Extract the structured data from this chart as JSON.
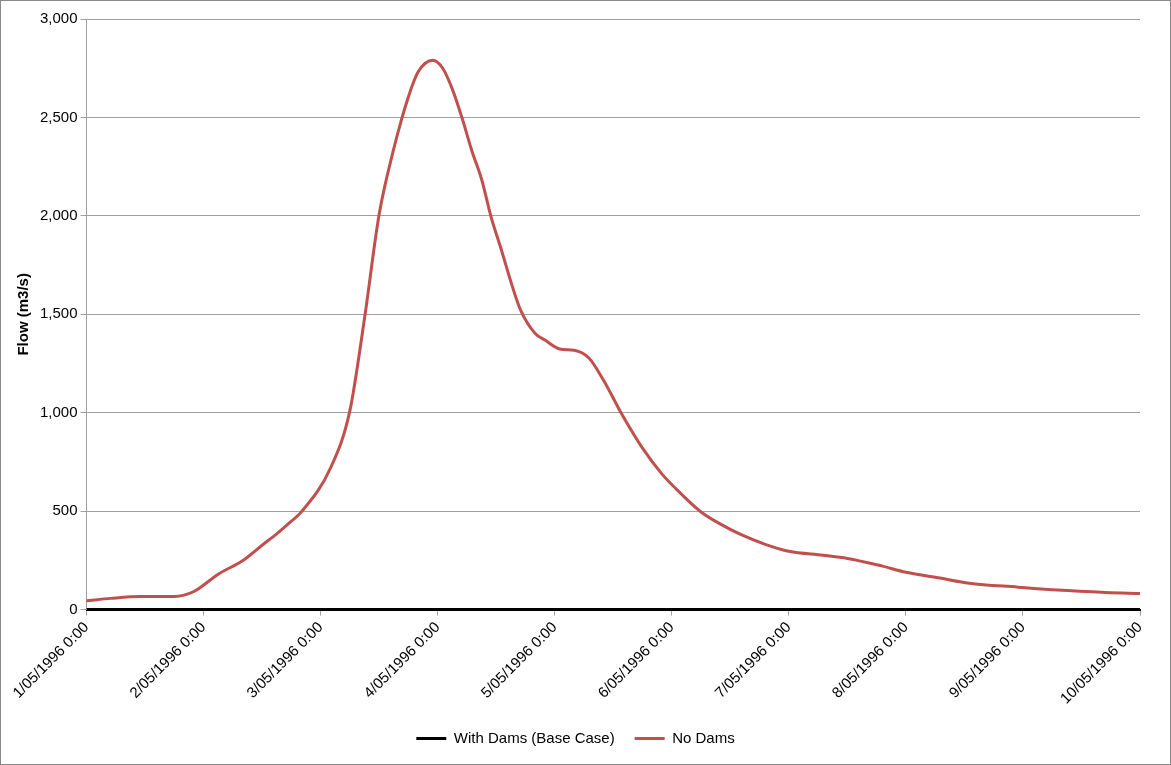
{
  "chart_data": {
    "type": "line",
    "ylabel": "Flow (m3/s)",
    "xlim": [
      "1996-05-01T00:00",
      "1996-05-10T00:00"
    ],
    "xticks": [
      {
        "value": "1996-05-01T00:00",
        "label": "1/05/1996 0:00"
      },
      {
        "value": "1996-05-02T00:00",
        "label": "2/05/1996 0:00"
      },
      {
        "value": "1996-05-03T00:00",
        "label": "3/05/1996 0:00"
      },
      {
        "value": "1996-05-04T00:00",
        "label": "4/05/1996 0:00"
      },
      {
        "value": "1996-05-05T00:00",
        "label": "5/05/1996 0:00"
      },
      {
        "value": "1996-05-06T00:00",
        "label": "6/05/1996 0:00"
      },
      {
        "value": "1996-05-07T00:00",
        "label": "7/05/1996 0:00"
      },
      {
        "value": "1996-05-08T00:00",
        "label": "8/05/1996 0:00"
      },
      {
        "value": "1996-05-09T00:00",
        "label": "9/05/1996 0:00"
      },
      {
        "value": "1996-05-10T00:00",
        "label": "10/05/1996 0:00"
      }
    ],
    "ylim": [
      0,
      3000
    ],
    "yticks": [
      {
        "value": 0,
        "label": "0"
      },
      {
        "value": 500,
        "label": "500"
      },
      {
        "value": 1000,
        "label": "1,000"
      },
      {
        "value": 1500,
        "label": "1,500"
      },
      {
        "value": 2000,
        "label": "2,000"
      },
      {
        "value": 2500,
        "label": "2,500"
      },
      {
        "value": 3000,
        "label": "3,000"
      }
    ],
    "grid": "y",
    "legend": "bottom",
    "marker": "none",
    "line_style": "solid",
    "series": [
      {
        "name": "With Dams (Base Case)",
        "color": "#000000",
        "x": [
          "1996-05-01T00:00",
          "1996-05-10T00:00"
        ],
        "values": [
          0,
          0
        ]
      },
      {
        "name": "No Dams",
        "color": "#c0504d",
        "x": [
          "1996-05-01T00:00",
          "1996-05-01T05:00",
          "1996-05-01T11:00",
          "1996-05-01T18:00",
          "1996-05-01T22:00",
          "1996-05-02T03:00",
          "1996-05-02T08:00",
          "1996-05-02T12:00",
          "1996-05-02T15:00",
          "1996-05-02T18:00",
          "1996-05-02T20:00",
          "1996-05-03T02:00",
          "1996-05-03T06:00",
          "1996-05-03T09:00",
          "1996-05-03T12:00",
          "1996-05-03T15:00",
          "1996-05-03T18:00",
          "1996-05-03T20:00",
          "1996-05-03T23:00",
          "1996-05-04T01:00",
          "1996-05-04T03:00",
          "1996-05-04T05:00",
          "1996-05-04T07:00",
          "1996-05-04T09:00",
          "1996-05-04T11:00",
          "1996-05-04T13:00",
          "1996-05-04T15:00",
          "1996-05-04T17:00",
          "1996-05-04T20:00",
          "1996-05-04T22:00",
          "1996-05-05T01:00",
          "1996-05-05T04:00",
          "1996-05-05T07:00",
          "1996-05-05T10:00",
          "1996-05-05T14:00",
          "1996-05-05T18:00",
          "1996-05-05T22:00",
          "1996-05-06T02:00",
          "1996-05-06T06:00",
          "1996-05-06T10:00",
          "1996-05-06T14:00",
          "1996-05-06T19:00",
          "1996-05-07T00:00",
          "1996-05-07T07:00",
          "1996-05-07T12:00",
          "1996-05-07T19:00",
          "1996-05-08T00:00",
          "1996-05-08T07:00",
          "1996-05-08T13:00",
          "1996-05-08T23:00",
          "1996-05-09T07:00",
          "1996-05-09T17:00",
          "1996-05-10T00:00"
        ],
        "values": [
          45,
          57,
          66,
          67,
          92,
          180,
          248,
          327,
          385,
          449,
          495,
          718,
          1011,
          1480,
          2008,
          2341,
          2605,
          2732,
          2791,
          2751,
          2644,
          2497,
          2331,
          2186,
          1990,
          1832,
          1666,
          1521,
          1402,
          1369,
          1324,
          1317,
          1278,
          1165,
          982,
          820,
          688,
          586,
          496,
          434,
          383,
          333,
          296,
          276,
          260,
          222,
          190,
          160,
          134,
          114,
          99,
          87,
          82
        ]
      }
    ]
  }
}
